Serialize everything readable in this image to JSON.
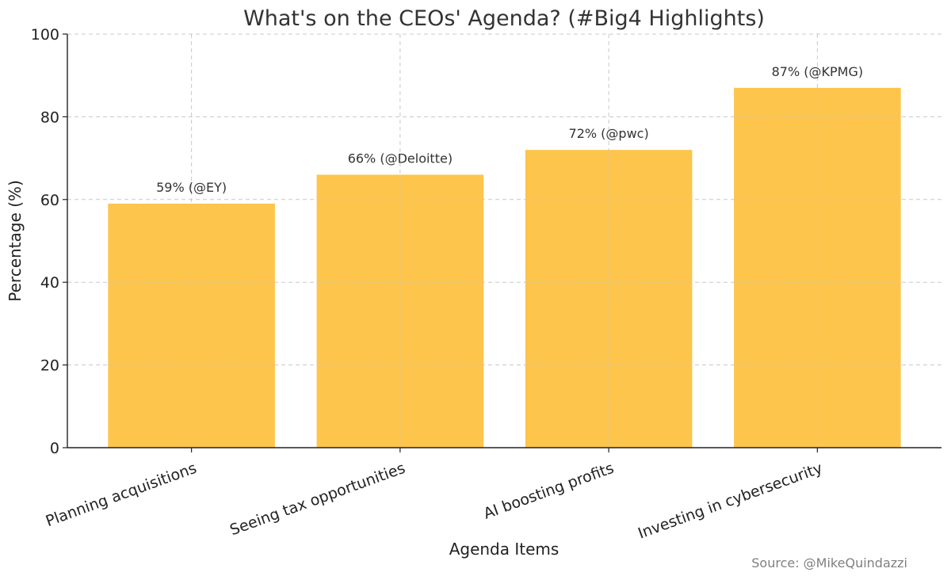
{
  "chart_data": {
    "type": "bar",
    "title": "What's on the CEOs' Agenda? (#Big4 Highlights)",
    "xlabel": "Agenda Items",
    "ylabel": "Percentage (%)",
    "ylim": [
      0,
      100
    ],
    "yticks": [
      0,
      20,
      40,
      60,
      80,
      100
    ],
    "grid": true,
    "categories": [
      "Planning acquisitions",
      "Seeing tax opportunities",
      "AI boosting profits",
      "Investing in cybersecurity"
    ],
    "values": [
      59,
      66,
      72,
      87
    ],
    "data_labels": [
      "59% (@EY)",
      "66% (@Deloitte)",
      "72% (@pwc)",
      "87% (@KPMG)"
    ],
    "bar_color": "#fdc54c"
  },
  "source": "Source: @MikeQuindazzi"
}
